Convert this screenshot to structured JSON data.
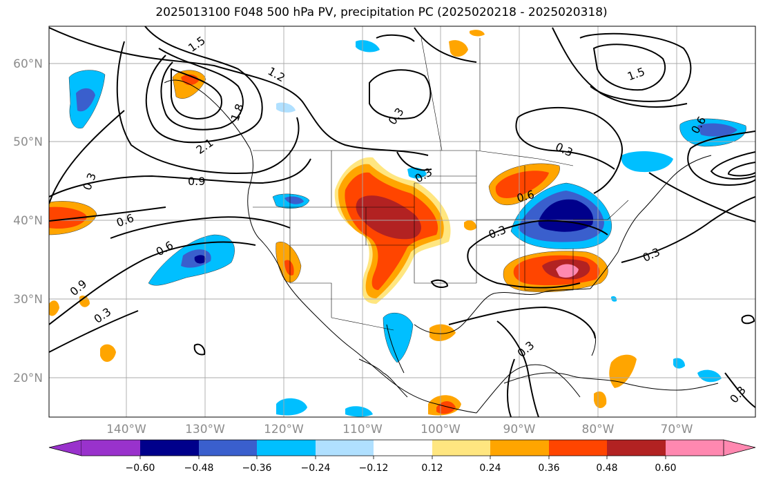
{
  "title": "2025013100 F048 500 hPa PV, precipitation PC (2025020218 - 2025020318)",
  "lat_labels": [
    "60°N",
    "50°N",
    "40°N",
    "30°N",
    "20°N"
  ],
  "lon_labels": [
    "140°W",
    "130°W",
    "120°W",
    "110°W",
    "100°W",
    "90°W",
    "80°W",
    "70°W"
  ],
  "contour_labels": [
    "1.5",
    "1.2",
    "2.1",
    "1.8",
    "0.3",
    "0.9",
    "0.6",
    "0.6",
    "0.9",
    "0.3",
    "0.3",
    "0.3",
    "1.5",
    "0.3",
    "0.6",
    "0.3",
    "0.3",
    "0.3",
    "0.3",
    "0.6"
  ],
  "colorbar": {
    "tick_labels": [
      "−0.60",
      "−0.48",
      "−0.36",
      "−0.24",
      "−0.12",
      "0.12",
      "0.24",
      "0.36",
      "0.48",
      "0.60"
    ],
    "colors": [
      "#9932cc",
      "#00008b",
      "#3a5fcd",
      "#00bfff",
      "#b0e0ff",
      "#ffffff",
      "#ffe680",
      "#ffa500",
      "#ff4500",
      "#b22222",
      "#ff88b0"
    ]
  }
}
